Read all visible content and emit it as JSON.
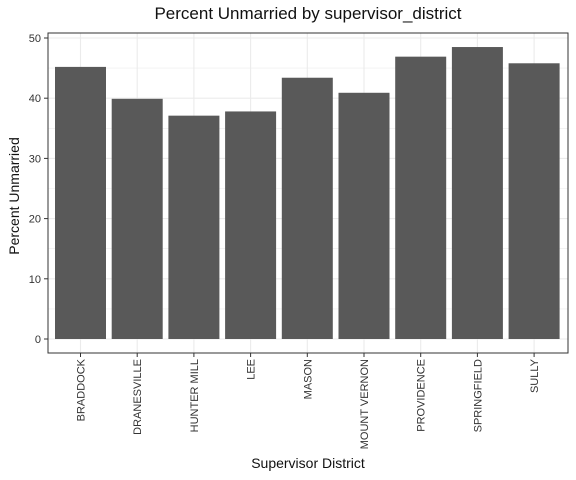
{
  "chart_data": {
    "type": "bar",
    "title": "Percent Unmarried by supervisor_district",
    "xlabel": "Supervisor District",
    "ylabel": "Percent Unmarried",
    "categories": [
      "BRADDOCK",
      "DRANESVILLE",
      "HUNTER MILL",
      "LEE",
      "MASON",
      "MOUNT VERNON",
      "PROVIDENCE",
      "SPRINGFIELD",
      "SULLY"
    ],
    "values": [
      45.2,
      39.9,
      37.1,
      37.8,
      43.4,
      40.9,
      46.9,
      48.5,
      45.8
    ],
    "ylim": [
      0,
      50
    ],
    "yticks": [
      0,
      10,
      20,
      30,
      40,
      50
    ],
    "grid": true,
    "bar_color": "#595959",
    "grid_color": "#ebebeb"
  }
}
